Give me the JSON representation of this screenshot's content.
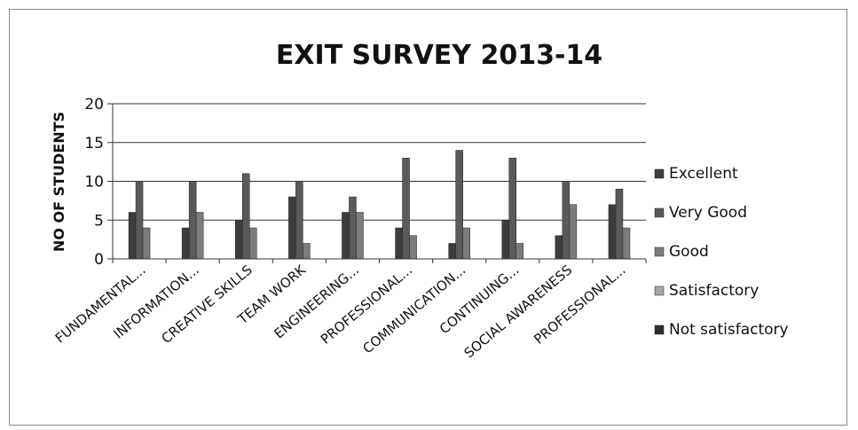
{
  "chart_data": {
    "type": "bar",
    "title": "EXIT SURVEY 2013-14",
    "xlabel": "",
    "ylabel": "NO OF STUDENTS",
    "ylim": [
      0,
      20
    ],
    "yticks": [
      0,
      5,
      10,
      15,
      20
    ],
    "grid": true,
    "legend_position": "right",
    "categories": [
      "FUNDAMENTAL...",
      "INFORMATION...",
      "CREATIVE SKILLS",
      "TEAM WORK",
      "ENGINEERING...",
      "PROFESSIONAL...",
      "COMMUNICATION...",
      "CONTINUING...",
      "SOCIAL AWARENESS",
      "PROFESSIONAL..."
    ],
    "series": [
      {
        "name": "Excellent",
        "values": [
          6,
          4,
          5,
          8,
          6,
          4,
          2,
          5,
          3,
          7
        ],
        "color": "#3d3d3d"
      },
      {
        "name": "Very Good",
        "values": [
          10,
          10,
          11,
          10,
          8,
          13,
          14,
          13,
          10,
          9
        ],
        "color": "#5a5a5a"
      },
      {
        "name": "Good",
        "values": [
          4,
          6,
          4,
          2,
          6,
          3,
          4,
          2,
          7,
          4
        ],
        "color": "#7c7c7c"
      },
      {
        "name": "Satisfactory",
        "values": [
          0,
          0,
          0,
          0,
          0,
          0,
          0,
          0,
          0,
          0
        ],
        "color": "#a8a8a8"
      },
      {
        "name": "Not satisfactory",
        "values": [
          0,
          0,
          0,
          0,
          0,
          0,
          0,
          0,
          0,
          0
        ],
        "color": "#2e2e2e"
      }
    ]
  }
}
